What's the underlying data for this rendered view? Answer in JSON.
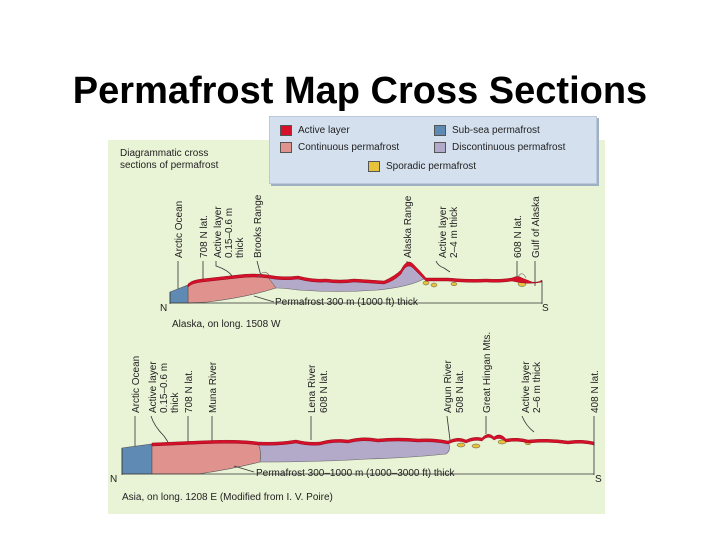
{
  "slide": {
    "title": "Permafrost Map Cross Sections"
  },
  "legend": {
    "items": [
      {
        "label": "Active layer",
        "color": "#d7102a"
      },
      {
        "label": "Sub-sea permafrost",
        "color": "#5f8ab4"
      },
      {
        "label": "Continuous permafrost",
        "color": "#e0938e"
      },
      {
        "label": "Discontinuous permafrost",
        "color": "#b3a9c9"
      },
      {
        "label": "Sporadic permafrost",
        "color": "#e7c23b"
      }
    ]
  },
  "figure": {
    "heading_line1": "Diagrammatic cross",
    "heading_line2": "sections of permafrost"
  },
  "alaska": {
    "labels": {
      "arctic_ocean": "Arctic Ocean",
      "lat70": "708 N lat.",
      "active_layer_1": "Active layer",
      "active_layer_1b": "0.15–0.6 m",
      "active_layer_1c": "thick",
      "brooks_range": "Brooks Range",
      "alaska_range": "Alaska Range",
      "active_layer_2": "Active layer",
      "active_layer_2b": "2–4 m thick",
      "lat60": "608 N lat.",
      "gulf_of_alaska": "Gulf of Alaska"
    },
    "north": "N",
    "south": "S",
    "thickness_note": "Permafrost 300 m (1000 ft) thick",
    "caption": "Alaska, on long. 1508 W"
  },
  "asia": {
    "labels": {
      "arctic_ocean": "Arctic Ocean",
      "active_layer_1": "Active layer",
      "active_layer_1b": "0.15–0.6 m",
      "active_layer_1c": "thick",
      "lat70": "708 N lat.",
      "muna_river": "Muna River",
      "lena_river": "Lena River",
      "lat60": "608 N lat.",
      "argun_river": "Argun River",
      "lat50": "508 N lat.",
      "great_hingan": "Great Hingan Mts.",
      "active_layer_2": "Active layer",
      "active_layer_2b": "2–6 m thick",
      "lat40": "408 N lat."
    },
    "north": "N",
    "south": "S",
    "thickness_note": "Permafrost 300–1000 m (1000–3000 ft) thick",
    "caption": "Asia, on long. 1208 E (Modified from I. V. Poire)"
  }
}
